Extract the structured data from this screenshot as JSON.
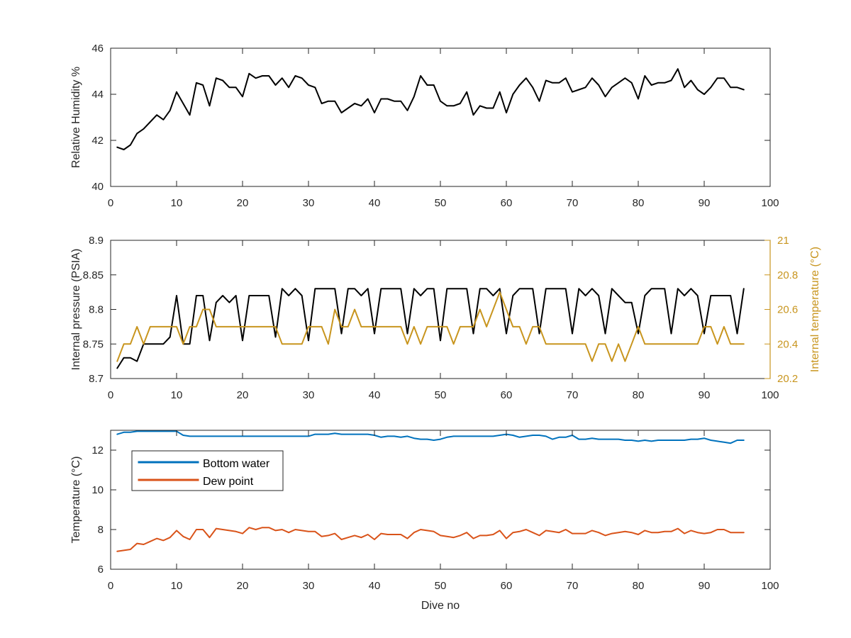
{
  "chart_data": [
    {
      "type": "line",
      "title": "",
      "xlabel": "",
      "ylabel": "Relative Humidity %",
      "xlim": [
        0,
        100
      ],
      "ylim": [
        40,
        46
      ],
      "xticks": [
        0,
        10,
        20,
        30,
        40,
        50,
        60,
        70,
        80,
        90,
        100
      ],
      "yticks": [
        40,
        42,
        44,
        46
      ],
      "grid": false,
      "colors": {
        "humidity": "#000000"
      },
      "series": [
        {
          "axis": "left",
          "color": "#000000",
          "x": [
            1,
            2,
            3,
            4,
            5,
            6,
            7,
            8,
            9,
            10,
            11,
            12,
            13,
            14,
            15,
            16,
            17,
            18,
            19,
            20,
            21,
            22,
            23,
            24,
            25,
            26,
            27,
            28,
            29,
            30,
            31,
            32,
            33,
            34,
            35,
            36,
            37,
            38,
            39,
            40,
            41,
            42,
            43,
            44,
            45,
            46,
            47,
            48,
            49,
            50,
            51,
            52,
            53,
            54,
            55,
            56,
            57,
            58,
            59,
            60,
            61,
            62,
            63,
            64,
            65,
            66,
            67,
            68,
            69,
            70,
            71,
            72,
            73,
            74,
            75,
            76,
            77,
            78,
            79,
            80,
            81,
            82,
            83,
            84,
            85,
            86,
            87,
            88,
            89,
            90,
            91,
            92,
            93,
            94,
            95,
            96
          ],
          "values": [
            41.7,
            41.6,
            41.8,
            42.3,
            42.5,
            42.8,
            43.1,
            42.9,
            43.3,
            44.1,
            43.6,
            43.1,
            44.5,
            44.4,
            43.5,
            44.7,
            44.6,
            44.3,
            44.3,
            43.9,
            44.9,
            44.7,
            44.8,
            44.8,
            44.4,
            44.7,
            44.3,
            44.8,
            44.7,
            44.4,
            44.3,
            43.6,
            43.7,
            43.7,
            43.2,
            43.4,
            43.6,
            43.5,
            43.8,
            43.2,
            43.8,
            43.8,
            43.7,
            43.7,
            43.3,
            43.9,
            44.8,
            44.4,
            44.4,
            43.7,
            43.5,
            43.5,
            43.6,
            44.1,
            43.1,
            43.5,
            43.4,
            43.4,
            44.1,
            43.2,
            44.0,
            44.4,
            44.7,
            44.3,
            43.7,
            44.6,
            44.5,
            44.5,
            44.7,
            44.1,
            44.2,
            44.3,
            44.7,
            44.4,
            43.9,
            44.3,
            44.5,
            44.7,
            44.5,
            43.8,
            44.8,
            44.4,
            44.5,
            44.5,
            44.6,
            45.1,
            44.3,
            44.6,
            44.2,
            44.0,
            44.3,
            44.7,
            44.7,
            44.3,
            44.3,
            44.2
          ]
        }
      ]
    },
    {
      "type": "line",
      "title": "",
      "xlabel": "",
      "ylabel": "Internal pressure (PSIA)",
      "ylabel_right": "Internal temperature (°C)",
      "xlim": [
        0,
        100
      ],
      "ylim": [
        8.7,
        8.9
      ],
      "ylim_right": [
        20.2,
        21
      ],
      "xticks": [
        0,
        10,
        20,
        30,
        40,
        50,
        60,
        70,
        80,
        90,
        100
      ],
      "yticks": [
        "8.7",
        "8.75",
        "8.8",
        "8.85",
        "8.9"
      ],
      "yticks_right": [
        "20.2",
        "20.4",
        "20.6",
        "20.8",
        "21"
      ],
      "grid": false,
      "colors": {
        "pressure": "#000000",
        "temperature": "#c8951e"
      },
      "series": [
        {
          "axis": "left",
          "color": "#000000",
          "x": [
            1,
            2,
            3,
            4,
            5,
            6,
            7,
            8,
            9,
            10,
            11,
            12,
            13,
            14,
            15,
            16,
            17,
            18,
            19,
            20,
            21,
            22,
            23,
            24,
            25,
            26,
            27,
            28,
            29,
            30,
            31,
            32,
            33,
            34,
            35,
            36,
            37,
            38,
            39,
            40,
            41,
            42,
            43,
            44,
            45,
            46,
            47,
            48,
            49,
            50,
            51,
            52,
            53,
            54,
            55,
            56,
            57,
            58,
            59,
            60,
            61,
            62,
            63,
            64,
            65,
            66,
            67,
            68,
            69,
            70,
            71,
            72,
            73,
            74,
            75,
            76,
            77,
            78,
            79,
            80,
            81,
            82,
            83,
            84,
            85,
            86,
            87,
            88,
            89,
            90,
            91,
            92,
            93,
            94,
            95,
            96
          ],
          "values": [
            8.715,
            8.73,
            8.73,
            8.725,
            8.75,
            8.75,
            8.75,
            8.75,
            8.76,
            8.82,
            8.75,
            8.75,
            8.82,
            8.82,
            8.755,
            8.81,
            8.82,
            8.81,
            8.82,
            8.755,
            8.82,
            8.82,
            8.82,
            8.82,
            8.76,
            8.83,
            8.82,
            8.83,
            8.82,
            8.755,
            8.83,
            8.83,
            8.83,
            8.83,
            8.765,
            8.83,
            8.83,
            8.82,
            8.83,
            8.765,
            8.83,
            8.83,
            8.83,
            8.83,
            8.765,
            8.83,
            8.82,
            8.83,
            8.83,
            8.755,
            8.83,
            8.83,
            8.83,
            8.83,
            8.765,
            8.83,
            8.83,
            8.82,
            8.83,
            8.765,
            8.82,
            8.83,
            8.83,
            8.83,
            8.765,
            8.83,
            8.83,
            8.83,
            8.83,
            8.765,
            8.83,
            8.82,
            8.83,
            8.82,
            8.765,
            8.83,
            8.82,
            8.81,
            8.81,
            8.765,
            8.82,
            8.83,
            8.83,
            8.83,
            8.765,
            8.83,
            8.82,
            8.83,
            8.82,
            8.765,
            8.82,
            8.82,
            8.82,
            8.82,
            8.765,
            8.83
          ]
        },
        {
          "axis": "right",
          "color": "#c8951e",
          "x": [
            1,
            2,
            3,
            4,
            5,
            6,
            7,
            8,
            9,
            10,
            11,
            12,
            13,
            14,
            15,
            16,
            17,
            18,
            19,
            20,
            21,
            22,
            23,
            24,
            25,
            26,
            27,
            28,
            29,
            30,
            31,
            32,
            33,
            34,
            35,
            36,
            37,
            38,
            39,
            40,
            41,
            42,
            43,
            44,
            45,
            46,
            47,
            48,
            49,
            50,
            51,
            52,
            53,
            54,
            55,
            56,
            57,
            58,
            59,
            60,
            61,
            62,
            63,
            64,
            65,
            66,
            67,
            68,
            69,
            70,
            71,
            72,
            73,
            74,
            75,
            76,
            77,
            78,
            79,
            80,
            81,
            82,
            83,
            84,
            85,
            86,
            87,
            88,
            89,
            90,
            91,
            92,
            93,
            94,
            95,
            96
          ],
          "values": [
            20.3,
            20.4,
            20.4,
            20.5,
            20.4,
            20.5,
            20.5,
            20.5,
            20.5,
            20.5,
            20.4,
            20.5,
            20.5,
            20.6,
            20.6,
            20.5,
            20.5,
            20.5,
            20.5,
            20.5,
            20.5,
            20.5,
            20.5,
            20.5,
            20.5,
            20.4,
            20.4,
            20.4,
            20.4,
            20.5,
            20.5,
            20.5,
            20.4,
            20.6,
            20.5,
            20.5,
            20.6,
            20.5,
            20.5,
            20.5,
            20.5,
            20.5,
            20.5,
            20.5,
            20.4,
            20.5,
            20.4,
            20.5,
            20.5,
            20.5,
            20.5,
            20.4,
            20.5,
            20.5,
            20.5,
            20.6,
            20.5,
            20.6,
            20.7,
            20.6,
            20.5,
            20.5,
            20.4,
            20.5,
            20.5,
            20.4,
            20.4,
            20.4,
            20.4,
            20.4,
            20.4,
            20.4,
            20.3,
            20.4,
            20.4,
            20.3,
            20.4,
            20.3,
            20.4,
            20.5,
            20.4,
            20.4,
            20.4,
            20.4,
            20.4,
            20.4,
            20.4,
            20.4,
            20.4,
            20.5,
            20.5,
            20.4,
            20.5,
            20.4,
            20.4,
            20.4
          ]
        }
      ]
    },
    {
      "type": "line",
      "title": "",
      "xlabel": "Dive no",
      "ylabel": "Temperature (°C)",
      "xlim": [
        0,
        100
      ],
      "ylim": [
        6,
        13
      ],
      "xticks": [
        0,
        10,
        20,
        30,
        40,
        50,
        60,
        70,
        80,
        90,
        100
      ],
      "yticks": [
        6,
        8,
        10,
        12
      ],
      "grid": false,
      "legend": "top-left",
      "colors": {
        "bottom_water": "#0072bd",
        "dew_point": "#d95319"
      },
      "series": [
        {
          "name": "Bottom water",
          "axis": "left",
          "color": "#0072bd",
          "x": [
            1,
            2,
            3,
            4,
            5,
            6,
            7,
            8,
            9,
            10,
            11,
            12,
            13,
            14,
            15,
            16,
            17,
            18,
            19,
            20,
            21,
            22,
            23,
            24,
            25,
            26,
            27,
            28,
            29,
            30,
            31,
            32,
            33,
            34,
            35,
            36,
            37,
            38,
            39,
            40,
            41,
            42,
            43,
            44,
            45,
            46,
            47,
            48,
            49,
            50,
            51,
            52,
            53,
            54,
            55,
            56,
            57,
            58,
            59,
            60,
            61,
            62,
            63,
            64,
            65,
            66,
            67,
            68,
            69,
            70,
            71,
            72,
            73,
            74,
            75,
            76,
            77,
            78,
            79,
            80,
            81,
            82,
            83,
            84,
            85,
            86,
            87,
            88,
            89,
            90,
            91,
            92,
            93,
            94,
            95,
            96
          ],
          "values": [
            12.8,
            12.9,
            12.9,
            12.95,
            12.95,
            12.95,
            12.95,
            12.95,
            12.95,
            12.95,
            12.75,
            12.7,
            12.7,
            12.7,
            12.7,
            12.7,
            12.7,
            12.7,
            12.7,
            12.7,
            12.7,
            12.7,
            12.7,
            12.7,
            12.7,
            12.7,
            12.7,
            12.7,
            12.7,
            12.7,
            12.8,
            12.8,
            12.8,
            12.85,
            12.8,
            12.8,
            12.8,
            12.8,
            12.8,
            12.75,
            12.65,
            12.7,
            12.7,
            12.65,
            12.7,
            12.6,
            12.55,
            12.55,
            12.5,
            12.55,
            12.65,
            12.7,
            12.7,
            12.7,
            12.7,
            12.7,
            12.7,
            12.7,
            12.75,
            12.8,
            12.75,
            12.65,
            12.7,
            12.75,
            12.75,
            12.7,
            12.55,
            12.65,
            12.65,
            12.75,
            12.55,
            12.55,
            12.6,
            12.55,
            12.55,
            12.55,
            12.55,
            12.5,
            12.5,
            12.45,
            12.5,
            12.45,
            12.5,
            12.5,
            12.5,
            12.5,
            12.5,
            12.55,
            12.55,
            12.6,
            12.5,
            12.45,
            12.4,
            12.35,
            12.5,
            12.5
          ]
        },
        {
          "name": "Dew point",
          "axis": "left",
          "color": "#d95319",
          "x": [
            1,
            2,
            3,
            4,
            5,
            6,
            7,
            8,
            9,
            10,
            11,
            12,
            13,
            14,
            15,
            16,
            17,
            18,
            19,
            20,
            21,
            22,
            23,
            24,
            25,
            26,
            27,
            28,
            29,
            30,
            31,
            32,
            33,
            34,
            35,
            36,
            37,
            38,
            39,
            40,
            41,
            42,
            43,
            44,
            45,
            46,
            47,
            48,
            49,
            50,
            51,
            52,
            53,
            54,
            55,
            56,
            57,
            58,
            59,
            60,
            61,
            62,
            63,
            64,
            65,
            66,
            67,
            68,
            69,
            70,
            71,
            72,
            73,
            74,
            75,
            76,
            77,
            78,
            79,
            80,
            81,
            82,
            83,
            84,
            85,
            86,
            87,
            88,
            89,
            90,
            91,
            92,
            93,
            94,
            95,
            96
          ],
          "values": [
            6.9,
            6.95,
            7.0,
            7.3,
            7.25,
            7.4,
            7.55,
            7.45,
            7.6,
            7.95,
            7.65,
            7.5,
            8.0,
            8.0,
            7.6,
            8.05,
            8.0,
            7.95,
            7.9,
            7.8,
            8.1,
            8.0,
            8.1,
            8.1,
            7.95,
            8.0,
            7.85,
            8.0,
            7.95,
            7.9,
            7.9,
            7.65,
            7.7,
            7.8,
            7.5,
            7.6,
            7.7,
            7.6,
            7.75,
            7.5,
            7.8,
            7.75,
            7.75,
            7.75,
            7.55,
            7.85,
            8.0,
            7.95,
            7.9,
            7.7,
            7.65,
            7.6,
            7.7,
            7.85,
            7.55,
            7.7,
            7.7,
            7.75,
            7.95,
            7.55,
            7.85,
            7.9,
            8.0,
            7.85,
            7.7,
            7.95,
            7.9,
            7.85,
            8.0,
            7.8,
            7.8,
            7.8,
            7.95,
            7.85,
            7.7,
            7.8,
            7.85,
            7.9,
            7.85,
            7.75,
            7.95,
            7.85,
            7.85,
            7.9,
            7.9,
            8.05,
            7.8,
            7.95,
            7.85,
            7.8,
            7.85,
            8.0,
            8.0,
            7.85,
            7.85,
            7.85
          ]
        }
      ]
    }
  ]
}
